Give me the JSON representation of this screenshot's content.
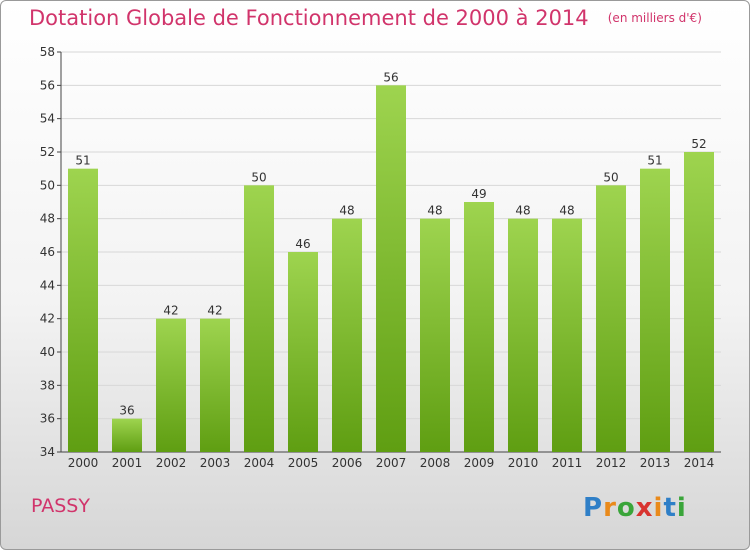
{
  "header": {
    "title": "Dotation Globale de Fonctionnement de 2000 à 2014",
    "unit": "(en milliers d'€)"
  },
  "footer": {
    "commune": "PASSY",
    "brand": "Proxiti"
  },
  "colors": {
    "accent": "#d1346b",
    "bar_top": "#9ed44f",
    "bar_bottom": "#5f9e12"
  },
  "chart_data": {
    "type": "bar",
    "title": "Dotation Globale de Fonctionnement de 2000 à 2014",
    "xlabel": "",
    "ylabel": "",
    "categories": [
      "2000",
      "2001",
      "2002",
      "2003",
      "2004",
      "2005",
      "2006",
      "2007",
      "2008",
      "2009",
      "2010",
      "2011",
      "2012",
      "2013",
      "2014"
    ],
    "values": [
      51,
      36,
      42,
      42,
      50,
      46,
      48,
      56,
      48,
      49,
      48,
      48,
      50,
      51,
      52
    ],
    "ylim": [
      34,
      58
    ],
    "yticks": [
      34,
      36,
      38,
      40,
      42,
      44,
      46,
      48,
      50,
      52,
      54,
      56,
      58
    ],
    "grid": true,
    "legend": "none"
  }
}
